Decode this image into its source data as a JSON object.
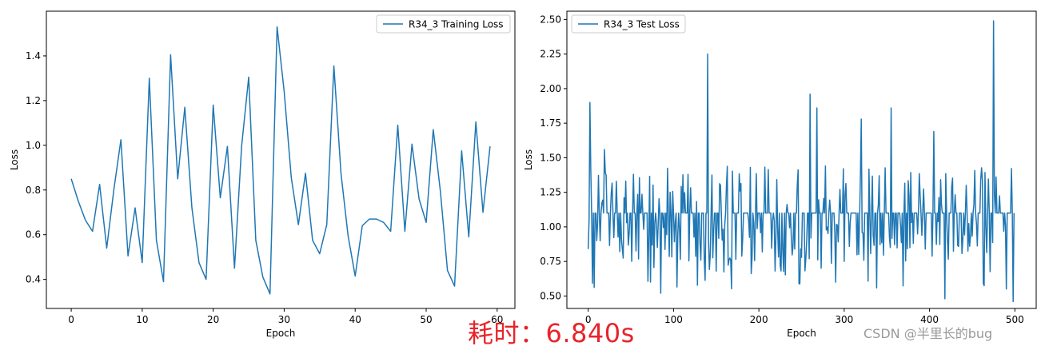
{
  "chart_data": [
    {
      "type": "line",
      "xlabel": "Epoch",
      "ylabel": "Loss",
      "xlim": [
        -3.5,
        62.5
      ],
      "ylim": [
        0.27,
        1.6
      ],
      "xticks": [
        0,
        10,
        20,
        30,
        40,
        50,
        60
      ],
      "yticks": [
        0.4,
        0.6,
        0.8,
        1.0,
        1.2,
        1.4
      ],
      "ytick_labels": [
        "0.4",
        "0.6",
        "0.8",
        "1.0",
        "1.2",
        "1.4"
      ],
      "legend_position": "top-right",
      "color": "#1f77b4",
      "series": [
        {
          "name": "R34_3 Training Loss",
          "x": [
            0,
            1,
            2,
            3,
            4,
            5,
            6,
            7,
            8,
            9,
            10,
            11,
            12,
            13,
            14,
            15,
            16,
            17,
            18,
            19,
            20,
            21,
            22,
            23,
            24,
            25,
            26,
            27,
            28,
            29,
            30,
            31,
            32,
            33,
            34,
            35,
            36,
            37,
            38,
            39,
            40,
            41,
            42,
            43,
            44,
            45,
            46,
            47,
            48,
            49,
            50,
            51,
            52,
            53,
            54,
            55,
            56,
            57,
            58,
            59
          ],
          "values": [
            0.85,
            0.75,
            0.665,
            0.615,
            0.825,
            0.54,
            0.8,
            1.025,
            0.505,
            0.72,
            0.475,
            1.3,
            0.575,
            0.39,
            1.405,
            0.85,
            1.17,
            0.72,
            0.475,
            0.4,
            1.18,
            0.765,
            0.995,
            0.45,
            0.995,
            1.305,
            0.575,
            0.41,
            0.335,
            1.53,
            1.24,
            0.855,
            0.645,
            0.875,
            0.575,
            0.515,
            0.645,
            1.355,
            0.875,
            0.595,
            0.415,
            0.64,
            0.67,
            0.67,
            0.655,
            0.615,
            1.09,
            0.615,
            1.005,
            0.76,
            0.655,
            1.07,
            0.795,
            0.44,
            0.37,
            0.975,
            0.59,
            1.105,
            0.7,
            0.995
          ]
        }
      ]
    },
    {
      "type": "line",
      "xlabel": "Epoch",
      "ylabel": "Loss",
      "xlim": [
        -25,
        525
      ],
      "ylim": [
        0.41,
        2.56
      ],
      "xticks": [
        0,
        100,
        200,
        300,
        400,
        500
      ],
      "yticks": [
        0.5,
        0.75,
        1.0,
        1.25,
        1.5,
        1.75,
        2.0,
        2.25,
        2.5
      ],
      "ytick_labels": [
        "0.50",
        "0.75",
        "1.00",
        "1.25",
        "1.50",
        "1.75",
        "2.00",
        "2.25",
        "2.50"
      ],
      "legend_position": "top-left",
      "color": "#1f77b4",
      "series": [
        {
          "name": "R34_3 Test Loss",
          "x_start": 0,
          "x_step": 1,
          "values": []
        }
      ]
    }
  ],
  "overlay": {
    "elapsed": "耗时：6.840s",
    "watermark": "CSDN @半里长的bug"
  }
}
